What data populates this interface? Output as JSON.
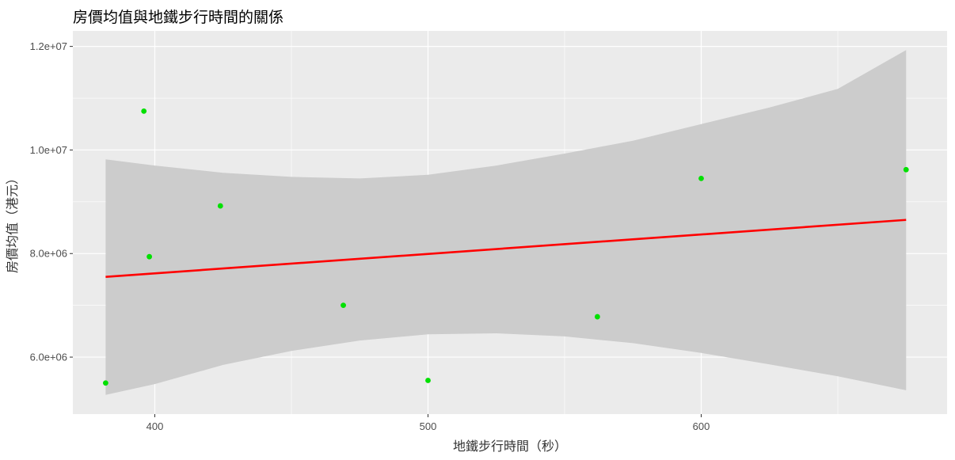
{
  "chart_data": {
    "type": "scatter",
    "title": "房價均值與地鐵步行時間的關係",
    "xlabel": "地鐵步行時間（秒）",
    "ylabel": "房價均值（港元）",
    "xlim": [
      370,
      690
    ],
    "ylim": [
      4900000,
      12300000
    ],
    "x_ticks": [
      400,
      500,
      600
    ],
    "x_tick_labels": [
      "400",
      "500",
      "600"
    ],
    "x_minor_ticks": [
      450,
      550,
      650
    ],
    "y_ticks": [
      6000000,
      8000000,
      10000000,
      12000000
    ],
    "y_tick_labels": [
      "6.0e+06",
      "8.0e+06",
      "1.0e+07",
      "1.2e+07"
    ],
    "y_minor_ticks": [
      7000000,
      9000000,
      11000000
    ],
    "grid": true,
    "series": [
      {
        "type": "scatter",
        "color": "#00e000",
        "points": [
          {
            "x": 382,
            "y": 5500000
          },
          {
            "x": 396,
            "y": 10750000
          },
          {
            "x": 398,
            "y": 7940000
          },
          {
            "x": 424,
            "y": 8920000
          },
          {
            "x": 469,
            "y": 7000000
          },
          {
            "x": 500,
            "y": 5550000
          },
          {
            "x": 562,
            "y": 6780000
          },
          {
            "x": 600,
            "y": 9450000
          },
          {
            "x": 675,
            "y": 9620000
          }
        ]
      },
      {
        "type": "line",
        "role": "regression-fit",
        "color": "#ff0000",
        "points": [
          {
            "x": 382,
            "y": 7550000
          },
          {
            "x": 675,
            "y": 8650000
          }
        ]
      },
      {
        "type": "area",
        "role": "confidence-band",
        "color": "#bfbfbf",
        "x": [
          382,
          400,
          425,
          450,
          475,
          500,
          525,
          550,
          575,
          600,
          625,
          650,
          675
        ],
        "upper": [
          9820000,
          9700000,
          9560000,
          9480000,
          9450000,
          9520000,
          9700000,
          9930000,
          10180000,
          10500000,
          10820000,
          11180000,
          11930000
        ],
        "lower": [
          5270000,
          5480000,
          5850000,
          6120000,
          6320000,
          6440000,
          6460000,
          6400000,
          6270000,
          6080000,
          5860000,
          5630000,
          5360000
        ]
      }
    ]
  },
  "colors": {
    "panel": "#ebebeb",
    "grid": "#ffffff",
    "band": "#cccccc",
    "fit_line": "#ff0000",
    "points": "#00e000"
  }
}
